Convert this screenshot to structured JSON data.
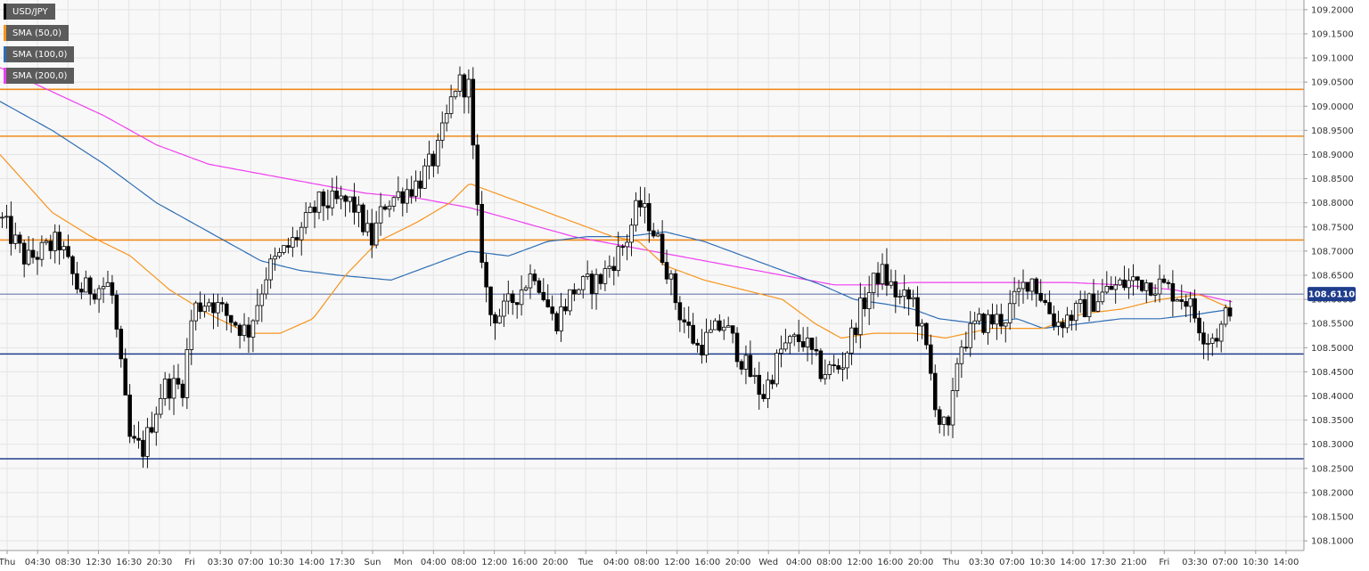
{
  "colors": {
    "background": "#f8f8f8",
    "grid": "#e4e4e4",
    "candle": "#000000",
    "sma50": "#f7941d",
    "sma100": "#2e6db4",
    "sma200": "#ef3ef0",
    "resistance": "#f08a1a",
    "support": "#1f3d8c",
    "price_line": "#1f3d8c"
  },
  "legend": [
    {
      "label": "USD/JPY",
      "color": "#000000"
    },
    {
      "label": "SMA (50,0)",
      "color": "#f7941d"
    },
    {
      "label": "SMA (100,0)",
      "color": "#2e6db4"
    },
    {
      "label": "SMA (200,0)",
      "color": "#ef3ef0"
    }
  ],
  "chart_data": {
    "type": "candlestick",
    "symbol": "USD/JPY",
    "ylim": [
      108.08,
      109.22
    ],
    "y_ticks": [
      "109.2000",
      "109.1500",
      "109.1000",
      "109.0500",
      "109.0000",
      "108.9500",
      "108.9000",
      "108.8500",
      "108.8000",
      "108.7500",
      "108.7000",
      "108.6500",
      "108.6000",
      "108.5500",
      "108.5000",
      "108.4500",
      "108.4000",
      "108.3500",
      "108.3000",
      "108.2500",
      "108.2000",
      "108.1500",
      "108.1000"
    ],
    "x_ticks": [
      "Thu",
      "04:30",
      "08:30",
      "12:30",
      "16:30",
      "20:30",
      "Fri",
      "03:30",
      "07:00",
      "10:30",
      "14:00",
      "17:30",
      "Sun",
      "Mon",
      "04:00",
      "08:00",
      "12:00",
      "16:00",
      "20:00",
      "Tue",
      "04:00",
      "08:00",
      "12:00",
      "16:00",
      "20:00",
      "Wed",
      "04:00",
      "08:00",
      "12:00",
      "16:00",
      "20:00",
      "Thu",
      "03:30",
      "07:00",
      "10:30",
      "14:00",
      "17:30",
      "21:00",
      "Fri",
      "03:30",
      "07:00",
      "10:30",
      "14:00"
    ],
    "current_price": "108.6110",
    "horizontal_levels": [
      {
        "kind": "resistance",
        "value": 109.035
      },
      {
        "kind": "resistance",
        "value": 108.938
      },
      {
        "kind": "resistance",
        "value": 108.723
      },
      {
        "kind": "support",
        "value": 108.487
      },
      {
        "kind": "support",
        "value": 108.27
      }
    ],
    "price_keypoints": [
      {
        "x": 0.0,
        "y": 108.77
      },
      {
        "x": 0.02,
        "y": 108.68
      },
      {
        "x": 0.045,
        "y": 108.72
      },
      {
        "x": 0.06,
        "y": 108.62
      },
      {
        "x": 0.085,
        "y": 108.63
      },
      {
        "x": 0.093,
        "y": 108.45
      },
      {
        "x": 0.1,
        "y": 108.3
      },
      {
        "x": 0.11,
        "y": 108.29
      },
      {
        "x": 0.125,
        "y": 108.42
      },
      {
        "x": 0.14,
        "y": 108.42
      },
      {
        "x": 0.148,
        "y": 108.58
      },
      {
        "x": 0.16,
        "y": 108.6
      },
      {
        "x": 0.19,
        "y": 108.53
      },
      {
        "x": 0.205,
        "y": 108.66
      },
      {
        "x": 0.225,
        "y": 108.72
      },
      {
        "x": 0.245,
        "y": 108.8
      },
      {
        "x": 0.27,
        "y": 108.8
      },
      {
        "x": 0.285,
        "y": 108.72
      },
      {
        "x": 0.295,
        "y": 108.8
      },
      {
        "x": 0.32,
        "y": 108.84
      },
      {
        "x": 0.335,
        "y": 108.9
      },
      {
        "x": 0.35,
        "y": 109.05
      },
      {
        "x": 0.36,
        "y": 109.04
      },
      {
        "x": 0.365,
        "y": 108.8
      },
      {
        "x": 0.375,
        "y": 108.57
      },
      {
        "x": 0.385,
        "y": 108.57
      },
      {
        "x": 0.41,
        "y": 108.66
      },
      {
        "x": 0.425,
        "y": 108.55
      },
      {
        "x": 0.44,
        "y": 108.62
      },
      {
        "x": 0.46,
        "y": 108.64
      },
      {
        "x": 0.48,
        "y": 108.72
      },
      {
        "x": 0.49,
        "y": 108.8
      },
      {
        "x": 0.5,
        "y": 108.75
      },
      {
        "x": 0.51,
        "y": 108.68
      },
      {
        "x": 0.52,
        "y": 108.58
      },
      {
        "x": 0.535,
        "y": 108.5
      },
      {
        "x": 0.555,
        "y": 108.55
      },
      {
        "x": 0.57,
        "y": 108.47
      },
      {
        "x": 0.585,
        "y": 108.4
      },
      {
        "x": 0.6,
        "y": 108.5
      },
      {
        "x": 0.615,
        "y": 108.52
      },
      {
        "x": 0.63,
        "y": 108.45
      },
      {
        "x": 0.645,
        "y": 108.46
      },
      {
        "x": 0.66,
        "y": 108.58
      },
      {
        "x": 0.675,
        "y": 108.66
      },
      {
        "x": 0.69,
        "y": 108.6
      },
      {
        "x": 0.7,
        "y": 108.6
      },
      {
        "x": 0.71,
        "y": 108.5
      },
      {
        "x": 0.72,
        "y": 108.35
      },
      {
        "x": 0.728,
        "y": 108.32
      },
      {
        "x": 0.735,
        "y": 108.5
      },
      {
        "x": 0.75,
        "y": 108.55
      },
      {
        "x": 0.77,
        "y": 108.56
      },
      {
        "x": 0.79,
        "y": 108.65
      },
      {
        "x": 0.81,
        "y": 108.55
      },
      {
        "x": 0.83,
        "y": 108.58
      },
      {
        "x": 0.85,
        "y": 108.62
      },
      {
        "x": 0.87,
        "y": 108.64
      },
      {
        "x": 0.89,
        "y": 108.63
      },
      {
        "x": 0.91,
        "y": 108.6
      },
      {
        "x": 0.925,
        "y": 108.52
      },
      {
        "x": 0.935,
        "y": 108.53
      },
      {
        "x": 0.945,
        "y": 108.6
      }
    ],
    "sma50_keypoints": [
      {
        "x": 0.0,
        "y": 108.9
      },
      {
        "x": 0.04,
        "y": 108.78
      },
      {
        "x": 0.07,
        "y": 108.73
      },
      {
        "x": 0.1,
        "y": 108.69
      },
      {
        "x": 0.13,
        "y": 108.62
      },
      {
        "x": 0.16,
        "y": 108.57
      },
      {
        "x": 0.19,
        "y": 108.53
      },
      {
        "x": 0.215,
        "y": 108.53
      },
      {
        "x": 0.24,
        "y": 108.56
      },
      {
        "x": 0.265,
        "y": 108.65
      },
      {
        "x": 0.29,
        "y": 108.72
      },
      {
        "x": 0.32,
        "y": 108.76
      },
      {
        "x": 0.345,
        "y": 108.8
      },
      {
        "x": 0.36,
        "y": 108.84
      },
      {
        "x": 0.38,
        "y": 108.82
      },
      {
        "x": 0.41,
        "y": 108.79
      },
      {
        "x": 0.44,
        "y": 108.76
      },
      {
        "x": 0.47,
        "y": 108.73
      },
      {
        "x": 0.49,
        "y": 108.72
      },
      {
        "x": 0.51,
        "y": 108.67
      },
      {
        "x": 0.54,
        "y": 108.64
      },
      {
        "x": 0.57,
        "y": 108.62
      },
      {
        "x": 0.6,
        "y": 108.6
      },
      {
        "x": 0.625,
        "y": 108.55
      },
      {
        "x": 0.645,
        "y": 108.52
      },
      {
        "x": 0.67,
        "y": 108.53
      },
      {
        "x": 0.7,
        "y": 108.53
      },
      {
        "x": 0.725,
        "y": 108.52
      },
      {
        "x": 0.76,
        "y": 108.54
      },
      {
        "x": 0.8,
        "y": 108.54
      },
      {
        "x": 0.83,
        "y": 108.57
      },
      {
        "x": 0.86,
        "y": 108.58
      },
      {
        "x": 0.89,
        "y": 108.6
      },
      {
        "x": 0.92,
        "y": 108.61
      },
      {
        "x": 0.945,
        "y": 108.58
      }
    ],
    "sma100_keypoints": [
      {
        "x": 0.0,
        "y": 109.01
      },
      {
        "x": 0.04,
        "y": 108.95
      },
      {
        "x": 0.08,
        "y": 108.88
      },
      {
        "x": 0.12,
        "y": 108.8
      },
      {
        "x": 0.16,
        "y": 108.74
      },
      {
        "x": 0.2,
        "y": 108.68
      },
      {
        "x": 0.23,
        "y": 108.66
      },
      {
        "x": 0.26,
        "y": 108.65
      },
      {
        "x": 0.3,
        "y": 108.64
      },
      {
        "x": 0.33,
        "y": 108.67
      },
      {
        "x": 0.36,
        "y": 108.7
      },
      {
        "x": 0.39,
        "y": 108.69
      },
      {
        "x": 0.42,
        "y": 108.72
      },
      {
        "x": 0.45,
        "y": 108.73
      },
      {
        "x": 0.48,
        "y": 108.73
      },
      {
        "x": 0.51,
        "y": 108.74
      },
      {
        "x": 0.54,
        "y": 108.72
      },
      {
        "x": 0.57,
        "y": 108.69
      },
      {
        "x": 0.6,
        "y": 108.66
      },
      {
        "x": 0.63,
        "y": 108.63
      },
      {
        "x": 0.655,
        "y": 108.6
      },
      {
        "x": 0.68,
        "y": 108.59
      },
      {
        "x": 0.7,
        "y": 108.58
      },
      {
        "x": 0.72,
        "y": 108.56
      },
      {
        "x": 0.75,
        "y": 108.55
      },
      {
        "x": 0.78,
        "y": 108.56
      },
      {
        "x": 0.8,
        "y": 108.54
      },
      {
        "x": 0.83,
        "y": 108.55
      },
      {
        "x": 0.86,
        "y": 108.56
      },
      {
        "x": 0.89,
        "y": 108.56
      },
      {
        "x": 0.92,
        "y": 108.57
      },
      {
        "x": 0.945,
        "y": 108.58
      }
    ],
    "sma200_keypoints": [
      {
        "x": 0.0,
        "y": 109.08
      },
      {
        "x": 0.04,
        "y": 109.03
      },
      {
        "x": 0.08,
        "y": 108.98
      },
      {
        "x": 0.12,
        "y": 108.92
      },
      {
        "x": 0.16,
        "y": 108.88
      },
      {
        "x": 0.2,
        "y": 108.86
      },
      {
        "x": 0.24,
        "y": 108.84
      },
      {
        "x": 0.28,
        "y": 108.82
      },
      {
        "x": 0.32,
        "y": 108.81
      },
      {
        "x": 0.36,
        "y": 108.79
      },
      {
        "x": 0.4,
        "y": 108.76
      },
      {
        "x": 0.44,
        "y": 108.73
      },
      {
        "x": 0.48,
        "y": 108.71
      },
      {
        "x": 0.52,
        "y": 108.69
      },
      {
        "x": 0.56,
        "y": 108.67
      },
      {
        "x": 0.6,
        "y": 108.65
      },
      {
        "x": 0.64,
        "y": 108.63
      },
      {
        "x": 0.67,
        "y": 108.63
      },
      {
        "x": 0.7,
        "y": 108.635
      },
      {
        "x": 0.74,
        "y": 108.635
      },
      {
        "x": 0.78,
        "y": 108.635
      },
      {
        "x": 0.82,
        "y": 108.635
      },
      {
        "x": 0.86,
        "y": 108.63
      },
      {
        "x": 0.9,
        "y": 108.62
      },
      {
        "x": 0.92,
        "y": 108.61
      },
      {
        "x": 0.945,
        "y": 108.595
      }
    ]
  }
}
